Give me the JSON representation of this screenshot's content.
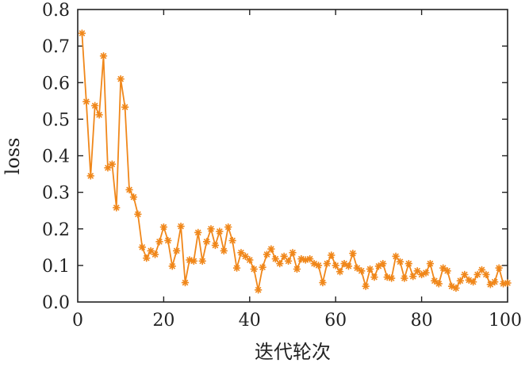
{
  "chart_data": {
    "type": "line",
    "xlabel": "迭代轮次",
    "ylabel": "loss",
    "xlim": [
      0,
      100
    ],
    "ylim": [
      0,
      0.8
    ],
    "x_ticks": [
      0,
      20,
      40,
      60,
      80,
      100
    ],
    "y_ticks": [
      0.0,
      0.1,
      0.2,
      0.3,
      0.4,
      0.5,
      0.6,
      0.7,
      0.8
    ],
    "x_tick_labels": [
      "0",
      "20",
      "40",
      "60",
      "80",
      "100"
    ],
    "y_tick_labels": [
      "0.0",
      "0.1",
      "0.2",
      "0.3",
      "0.4",
      "0.5",
      "0.6",
      "0.7",
      "0.8"
    ],
    "grid": false,
    "series": [
      {
        "color": "#f0871a",
        "marker": "asterisk",
        "x": [
          1,
          2,
          3,
          4,
          5,
          6,
          7,
          8,
          9,
          10,
          11,
          12,
          13,
          14,
          15,
          16,
          17,
          18,
          19,
          20,
          21,
          22,
          23,
          24,
          25,
          26,
          27,
          28,
          29,
          30,
          31,
          32,
          33,
          34,
          35,
          36,
          37,
          38,
          39,
          40,
          41,
          42,
          43,
          44,
          45,
          46,
          47,
          48,
          49,
          50,
          51,
          52,
          53,
          54,
          55,
          56,
          57,
          58,
          59,
          60,
          61,
          62,
          63,
          64,
          65,
          66,
          67,
          68,
          69,
          70,
          71,
          72,
          73,
          74,
          75,
          76,
          77,
          78,
          79,
          80,
          81,
          82,
          83,
          84,
          85,
          86,
          87,
          88,
          89,
          90,
          91,
          92,
          93,
          94,
          95,
          96,
          97,
          98,
          99,
          100
        ],
        "values": [
          0.735,
          0.548,
          0.345,
          0.537,
          0.512,
          0.673,
          0.367,
          0.377,
          0.258,
          0.61,
          0.533,
          0.307,
          0.287,
          0.24,
          0.15,
          0.12,
          0.14,
          0.13,
          0.165,
          0.205,
          0.168,
          0.098,
          0.14,
          0.207,
          0.053,
          0.115,
          0.112,
          0.19,
          0.112,
          0.165,
          0.2,
          0.155,
          0.193,
          0.14,
          0.205,
          0.168,
          0.093,
          0.135,
          0.125,
          0.115,
          0.09,
          0.033,
          0.095,
          0.13,
          0.145,
          0.118,
          0.105,
          0.125,
          0.112,
          0.135,
          0.09,
          0.118,
          0.115,
          0.118,
          0.105,
          0.1,
          0.053,
          0.105,
          0.128,
          0.1,
          0.083,
          0.105,
          0.098,
          0.133,
          0.093,
          0.085,
          0.043,
          0.09,
          0.068,
          0.098,
          0.105,
          0.068,
          0.065,
          0.125,
          0.11,
          0.065,
          0.105,
          0.07,
          0.085,
          0.075,
          0.08,
          0.105,
          0.058,
          0.05,
          0.093,
          0.085,
          0.043,
          0.038,
          0.058,
          0.075,
          0.06,
          0.055,
          0.075,
          0.088,
          0.075,
          0.048,
          0.055,
          0.093,
          0.05,
          0.052
        ]
      }
    ]
  }
}
